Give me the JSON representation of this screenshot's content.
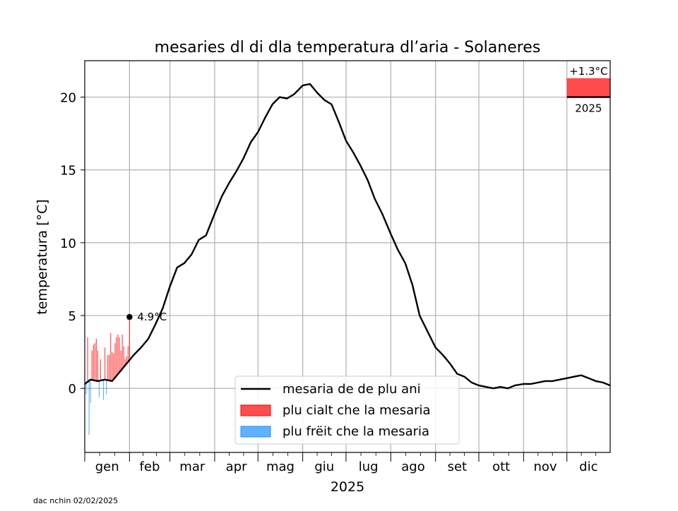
{
  "footer_note": "dac nchin 02/02/2025",
  "colors": {
    "mean_line": "#000000",
    "warmer": "#ff0000",
    "colder": "#1e90ff",
    "grid": "#b0b0b0"
  },
  "chart_data": {
    "type": "line",
    "title": "mesaries dl di dla temperatura dl’aria - Solaneres",
    "xlabel": "2025",
    "ylabel": "temperatura [°C]",
    "ylim": [
      -4.4,
      22.5
    ],
    "xlim": [
      1,
      365
    ],
    "yticks": [
      0,
      5,
      10,
      15,
      20
    ],
    "month_labels": [
      "gen",
      "feb",
      "mar",
      "apr",
      "mag",
      "giu",
      "lug",
      "ago",
      "set",
      "ott",
      "nov",
      "dic"
    ],
    "month_starts": [
      1,
      32,
      60,
      91,
      121,
      152,
      182,
      213,
      244,
      274,
      305,
      335
    ],
    "grid": true,
    "legend_position": "lower-center",
    "legend": [
      {
        "key": "mean",
        "label": "mesaria de de plu ani"
      },
      {
        "key": "warmer",
        "label": "plu cialt che la mesaria"
      },
      {
        "key": "colder",
        "label": "plu frëit che la mesaria"
      }
    ],
    "mean_series": {
      "name": "mesaria de de plu ani",
      "x": [
        1,
        5,
        10,
        15,
        20,
        25,
        30,
        35,
        40,
        45,
        50,
        55,
        60,
        65,
        70,
        75,
        80,
        85,
        91,
        96,
        101,
        106,
        111,
        116,
        121,
        126,
        131,
        136,
        141,
        146,
        152,
        157,
        162,
        167,
        172,
        177,
        182,
        187,
        192,
        197,
        202,
        207,
        213,
        218,
        223,
        228,
        233,
        238,
        244,
        249,
        254,
        259,
        264,
        269,
        274,
        279,
        284,
        289,
        294,
        299,
        305,
        310,
        315,
        320,
        325,
        330,
        335,
        340,
        345,
        350,
        355,
        360,
        365
      ],
      "y": [
        0.3,
        0.6,
        0.5,
        0.6,
        0.5,
        1.1,
        1.7,
        2.3,
        2.8,
        3.4,
        4.4,
        5.5,
        7.0,
        8.3,
        8.6,
        9.2,
        10.2,
        10.5,
        12.0,
        13.2,
        14.1,
        14.9,
        15.8,
        16.9,
        17.6,
        18.6,
        19.5,
        20.0,
        19.9,
        20.2,
        20.8,
        20.9,
        20.3,
        19.8,
        19.5,
        18.3,
        17.0,
        16.2,
        15.3,
        14.3,
        13.0,
        12.0,
        10.6,
        9.5,
        8.6,
        7.1,
        5.0,
        4.0,
        2.8,
        2.3,
        1.7,
        1.0,
        0.8,
        0.4,
        0.2,
        0.1,
        0.0,
        0.1,
        0.0,
        0.2,
        0.3,
        0.3,
        0.4,
        0.5,
        0.5,
        0.6,
        0.7,
        0.8,
        0.9,
        0.7,
        0.5,
        0.4,
        0.2
      ],
      "y_note": "smoothed multi-year daily mean"
    },
    "observed_2025": {
      "days": [
        1,
        2,
        3,
        4,
        5,
        6,
        7,
        8,
        9,
        10,
        11,
        12,
        13,
        14,
        15,
        16,
        17,
        18,
        19,
        20,
        21,
        22,
        23,
        24,
        25,
        26,
        27,
        28,
        29,
        30,
        31,
        32
      ],
      "values": [
        0.3,
        -0.4,
        3.5,
        -3.2,
        -1.0,
        2.6,
        3.0,
        3.1,
        3.4,
        2.6,
        -0.6,
        2.0,
        0.5,
        -0.8,
        2.8,
        -0.4,
        2.3,
        2.3,
        3.8,
        2.5,
        2.4,
        3.1,
        3.5,
        3.7,
        3.5,
        2.6,
        3.7,
        2.9,
        2.0,
        2.2,
        2.9,
        4.9
      ]
    },
    "annotation_last": {
      "day": 32,
      "value": 4.9,
      "label": "4.9°C"
    },
    "year_anomaly": {
      "label": "+1.3°C",
      "year": "2025",
      "value": 1.3
    }
  }
}
